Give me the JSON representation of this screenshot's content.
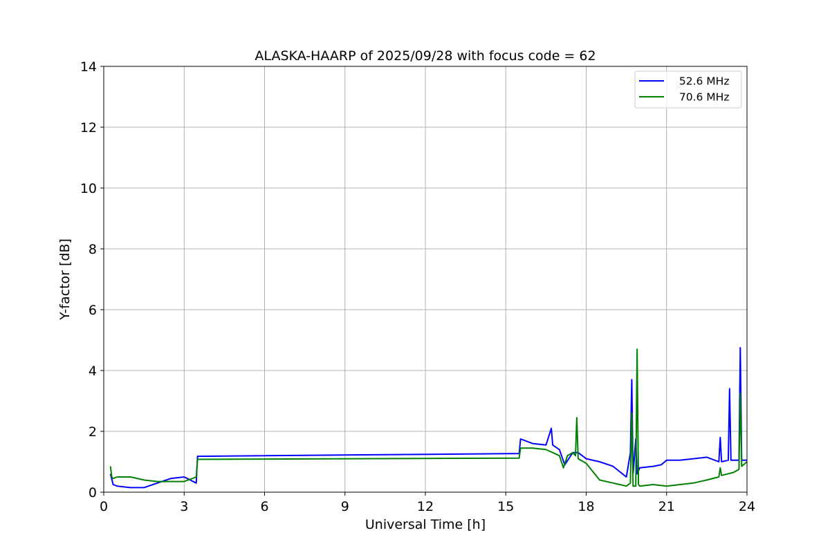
{
  "chart_data": {
    "type": "line",
    "title": "ALASKA-HAARP of 2025/09/28 with focus code = 62",
    "xlabel": "Universal Time [h]",
    "ylabel": "Y-factor [dB]",
    "xlim": [
      0,
      24
    ],
    "ylim": [
      0,
      14
    ],
    "xticks": [
      0,
      3,
      6,
      9,
      12,
      15,
      18,
      21,
      24
    ],
    "yticks": [
      0,
      2,
      4,
      6,
      8,
      10,
      12,
      14
    ],
    "grid": true,
    "legend": "top-right",
    "series": [
      {
        "name": "  52.6 MHz",
        "color": "#0000ff",
        "x": [
          0.25,
          0.35,
          0.5,
          1.0,
          1.5,
          2.0,
          2.5,
          3.0,
          3.45,
          3.5,
          15.5,
          15.55,
          16.0,
          16.5,
          16.7,
          16.75,
          17.0,
          17.2,
          17.5,
          17.7,
          18.0,
          18.5,
          19.0,
          19.5,
          19.65,
          19.7,
          19.75,
          19.85,
          19.9,
          20.0,
          20.5,
          20.8,
          21.0,
          21.5,
          22.0,
          22.5,
          22.95,
          23.0,
          23.05,
          23.3,
          23.35,
          23.4,
          23.7,
          23.75,
          23.8,
          24.0
        ],
        "y": [
          0.6,
          0.25,
          0.2,
          0.15,
          0.15,
          0.3,
          0.45,
          0.5,
          0.3,
          1.18,
          1.27,
          1.75,
          1.6,
          1.55,
          2.1,
          1.55,
          1.4,
          0.9,
          1.3,
          1.3,
          1.1,
          1.0,
          0.85,
          0.5,
          1.3,
          3.7,
          0.6,
          1.75,
          0.6,
          0.8,
          0.85,
          0.9,
          1.05,
          1.05,
          1.1,
          1.15,
          1.0,
          1.8,
          1.0,
          1.05,
          3.4,
          1.05,
          1.05,
          4.75,
          1.05,
          1.05
        ]
      },
      {
        "name": "  70.6 MHz",
        "color": "#008000",
        "x": [
          0.25,
          0.3,
          0.35,
          0.5,
          1.0,
          1.5,
          2.0,
          2.5,
          3.0,
          3.45,
          3.5,
          15.5,
          15.55,
          16.0,
          16.5,
          17.0,
          17.15,
          17.3,
          17.5,
          17.6,
          17.65,
          17.7,
          18.0,
          18.5,
          19.0,
          19.5,
          19.65,
          19.7,
          19.75,
          19.85,
          19.9,
          19.95,
          20.0,
          20.5,
          21.0,
          21.5,
          22.0,
          22.5,
          22.95,
          23.0,
          23.05,
          23.5,
          23.7,
          23.75,
          23.8,
          24.0
        ],
        "y": [
          0.85,
          0.5,
          0.45,
          0.5,
          0.5,
          0.4,
          0.35,
          0.35,
          0.35,
          0.5,
          1.08,
          1.12,
          1.45,
          1.45,
          1.4,
          1.2,
          0.8,
          1.2,
          1.3,
          1.2,
          2.45,
          1.1,
          0.95,
          0.4,
          0.3,
          0.2,
          0.3,
          2.6,
          0.2,
          0.2,
          4.7,
          0.25,
          0.2,
          0.25,
          0.2,
          0.25,
          0.3,
          0.4,
          0.5,
          0.8,
          0.55,
          0.65,
          0.75,
          3.25,
          0.85,
          1.0
        ]
      }
    ]
  }
}
